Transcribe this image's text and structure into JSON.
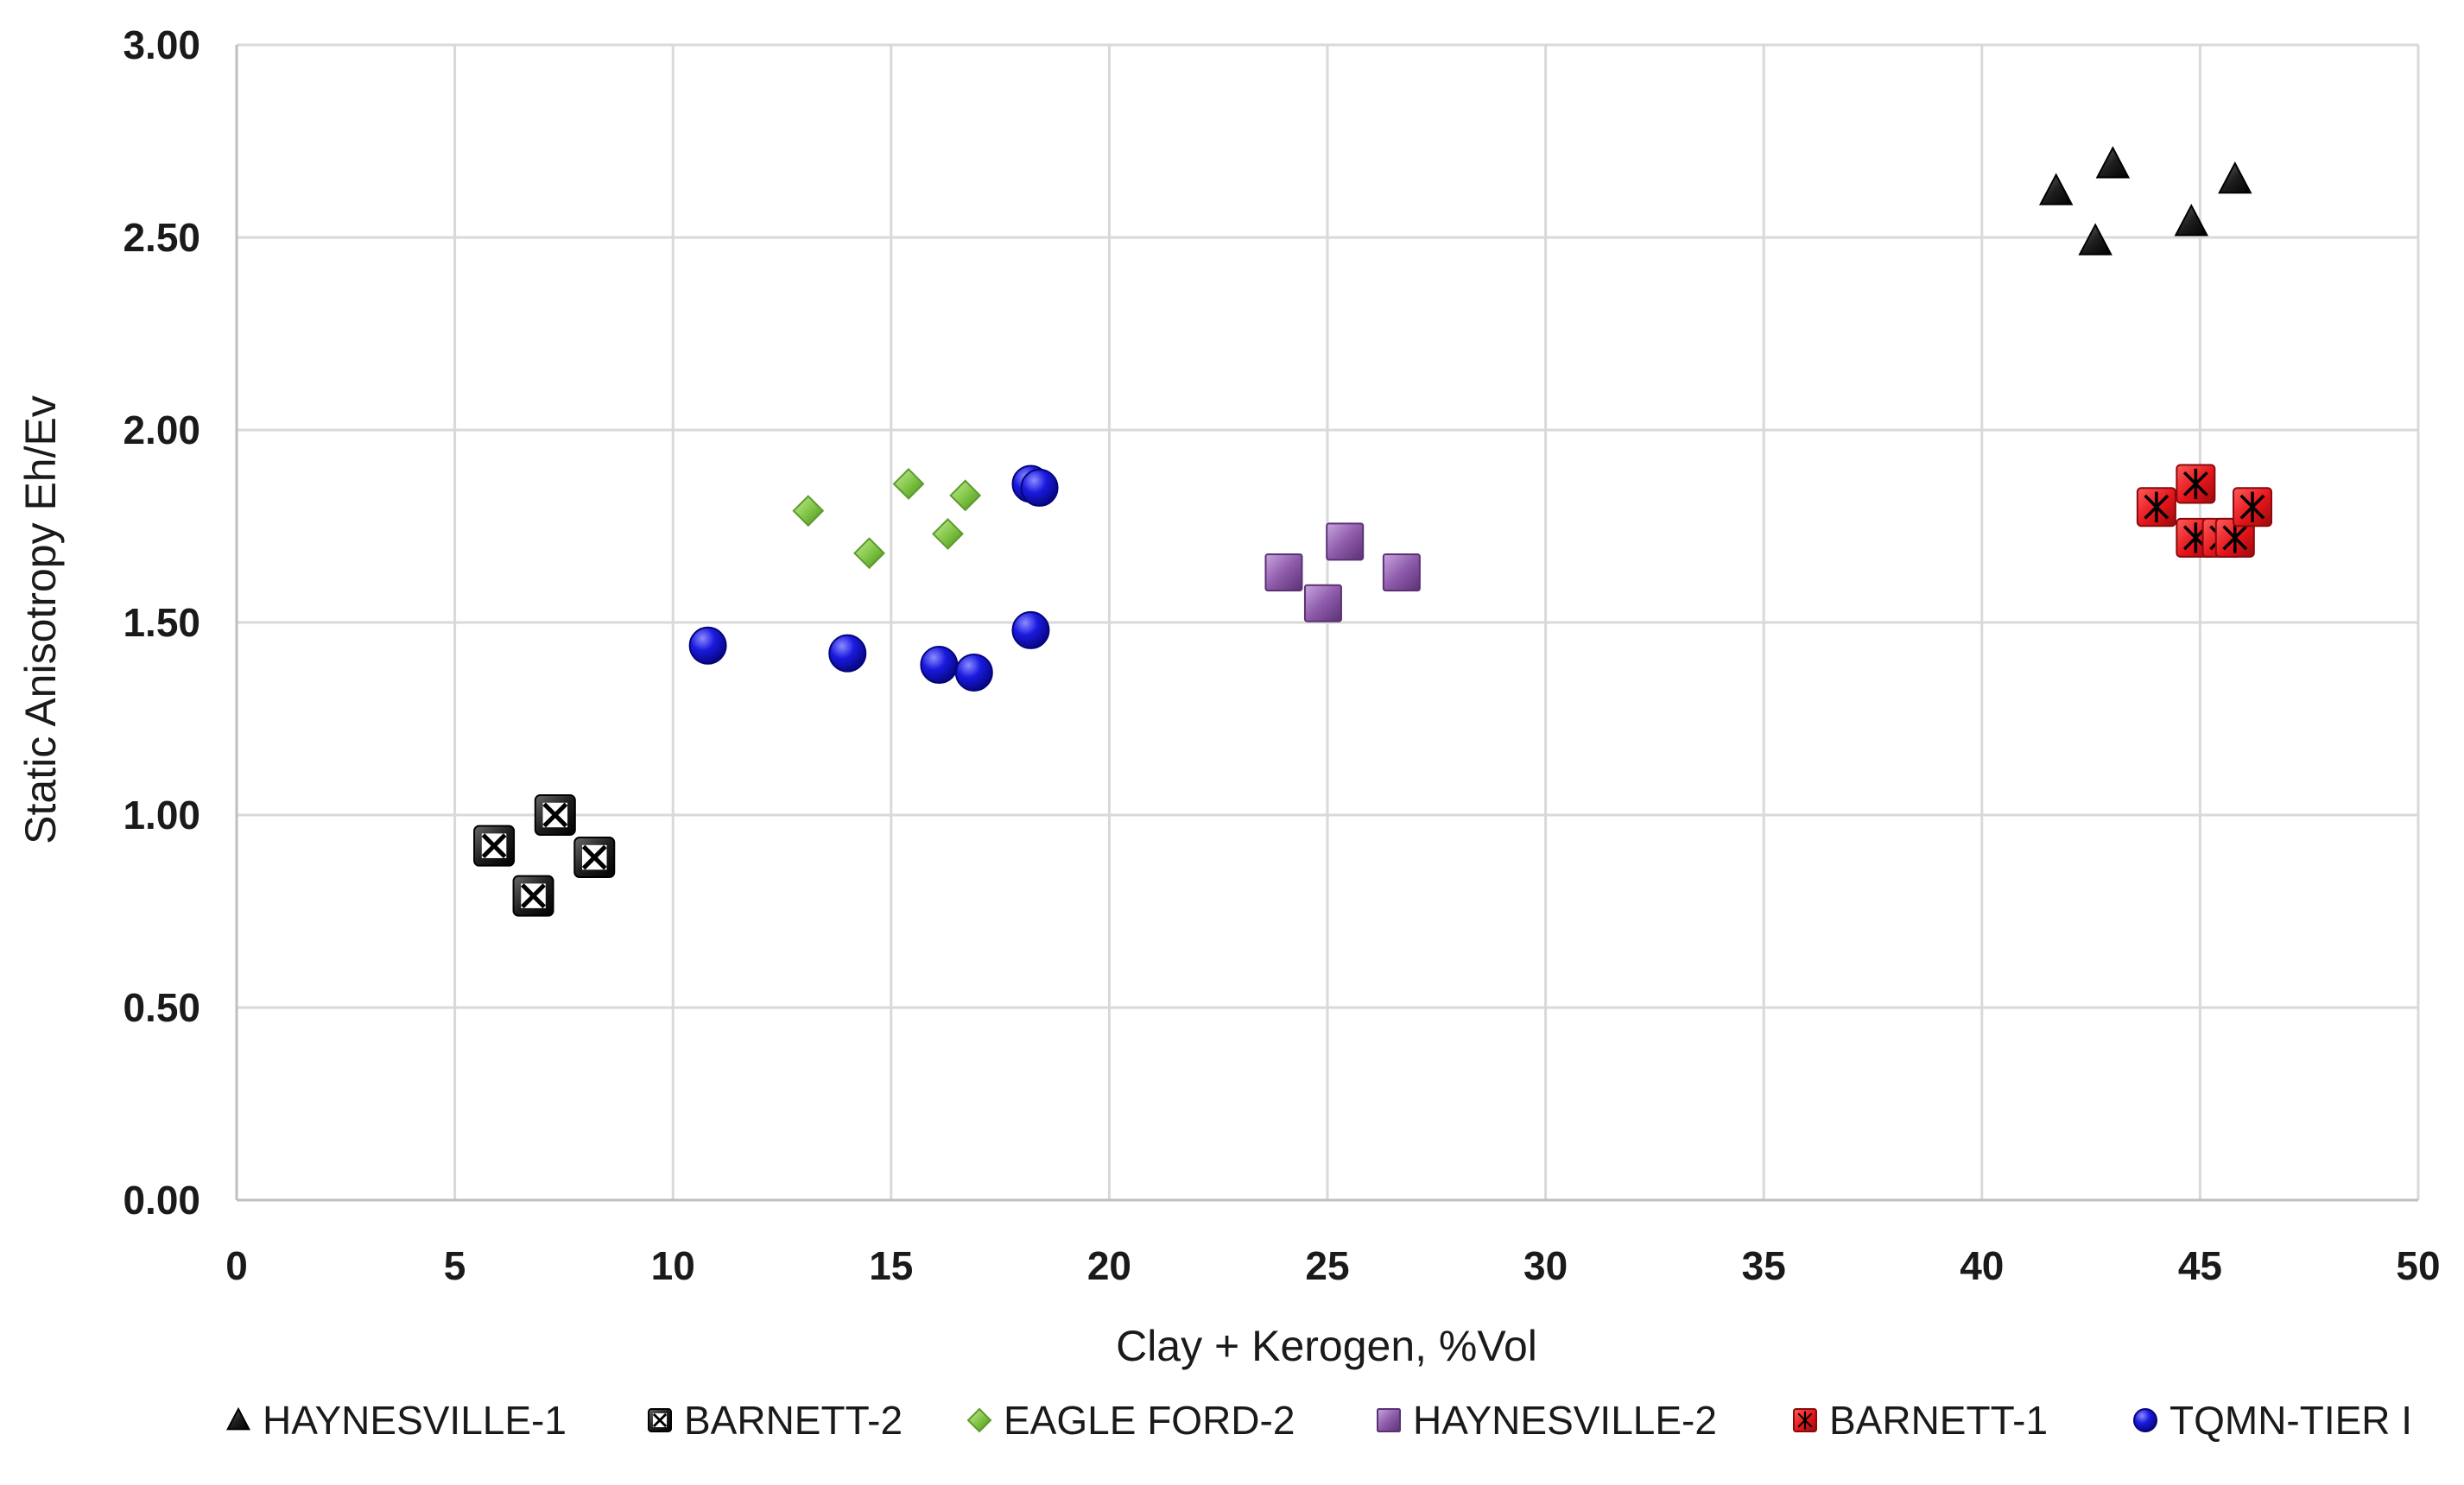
{
  "chart_data": {
    "type": "scatter",
    "title": "",
    "xlabel": "Clay + Kerogen, %Vol",
    "ylabel": "Static Anisotropy Eh/Ev",
    "xlim": [
      0,
      50
    ],
    "ylim": [
      0,
      3
    ],
    "x_ticks": [
      "0",
      "5",
      "10",
      "15",
      "20",
      "25",
      "30",
      "35",
      "40",
      "45",
      "50"
    ],
    "y_ticks": [
      "0.00",
      "0.50",
      "1.00",
      "1.50",
      "2.00",
      "2.50",
      "3.00"
    ],
    "grid": "vertical and horizontal",
    "legend_position": "bottom",
    "series": [
      {
        "name": "HAYNESVILLE-1",
        "marker": "triangle",
        "color": "#1a1a1a",
        "points": [
          [
            41.7,
            2.62
          ],
          [
            42.6,
            2.49
          ],
          [
            43.0,
            2.69
          ],
          [
            44.8,
            2.54
          ],
          [
            45.8,
            2.65
          ]
        ]
      },
      {
        "name": "BARNETT-2",
        "marker": "boxed-x",
        "color": "#1a1a1a",
        "points": [
          [
            5.9,
            0.92
          ],
          [
            6.8,
            0.79
          ],
          [
            7.3,
            1.0
          ],
          [
            8.2,
            0.89
          ]
        ]
      },
      {
        "name": "EAGLE FORD-2",
        "marker": "diamond",
        "color": "#7dc242",
        "points": [
          [
            13.1,
            1.79
          ],
          [
            14.5,
            1.68
          ],
          [
            15.4,
            1.86
          ],
          [
            16.3,
            1.73
          ],
          [
            16.7,
            1.83
          ]
        ]
      },
      {
        "name": "HAYNESVILLE-2",
        "marker": "square",
        "color": "#8e5bab",
        "points": [
          [
            24.0,
            1.63
          ],
          [
            24.9,
            1.55
          ],
          [
            25.4,
            1.71
          ],
          [
            26.7,
            1.63
          ]
        ]
      },
      {
        "name": "BARNETT-1",
        "marker": "boxed-asterisk",
        "color": "#e3151a",
        "points": [
          [
            44.0,
            1.8
          ],
          [
            44.9,
            1.72
          ],
          [
            44.9,
            1.86
          ],
          [
            45.5,
            1.72
          ],
          [
            45.8,
            1.72
          ],
          [
            46.2,
            1.8
          ]
        ]
      },
      {
        "name": "TQMN-TIER I",
        "marker": "circle",
        "color": "#1515d8",
        "points": [
          [
            10.8,
            1.44
          ],
          [
            14.0,
            1.42
          ],
          [
            16.1,
            1.39
          ],
          [
            16.9,
            1.37
          ],
          [
            18.2,
            1.48
          ],
          [
            18.2,
            1.86
          ],
          [
            18.4,
            1.85
          ]
        ]
      }
    ]
  }
}
